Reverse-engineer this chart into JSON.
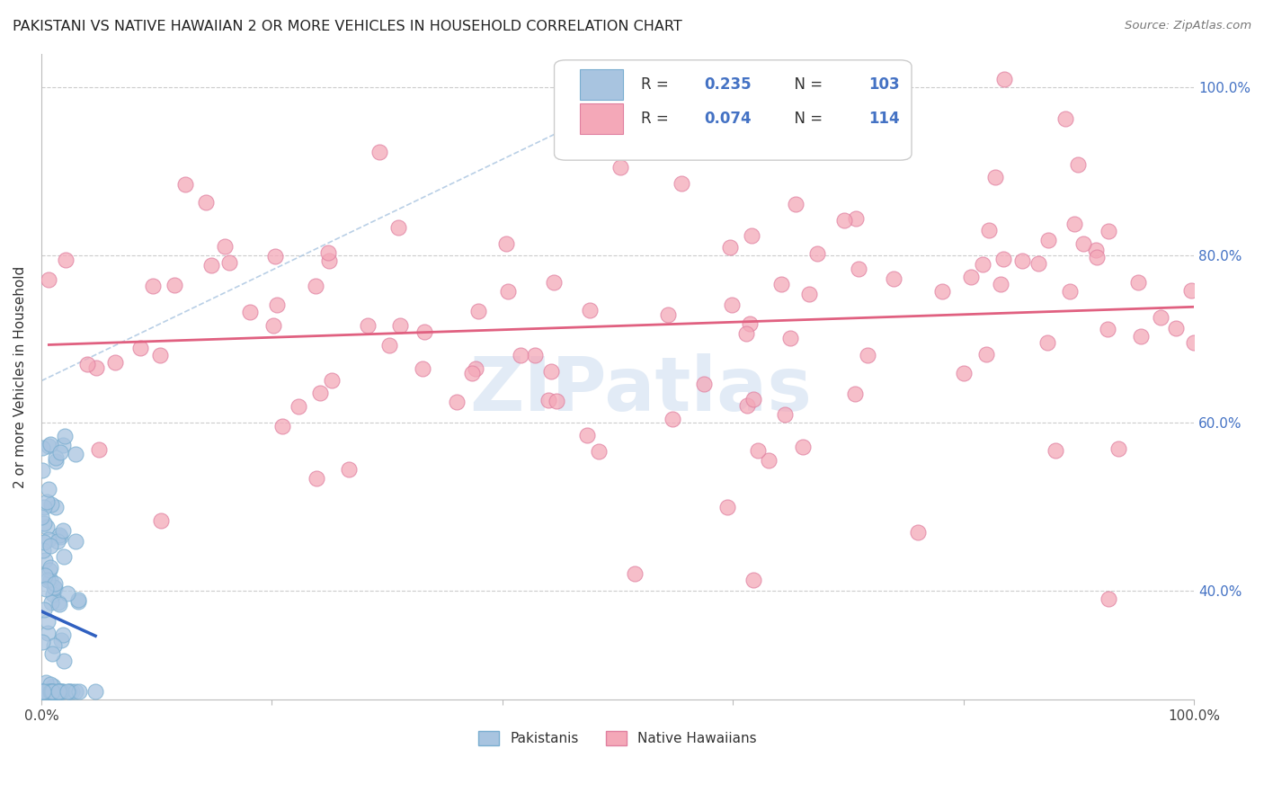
{
  "title": "PAKISTANI VS NATIVE HAWAIIAN 2 OR MORE VEHICLES IN HOUSEHOLD CORRELATION CHART",
  "source": "Source: ZipAtlas.com",
  "ylabel": "2 or more Vehicles in Household",
  "pakistani_R": 0.235,
  "pakistani_N": 103,
  "hawaiian_R": 0.074,
  "hawaiian_N": 114,
  "pakistani_color": "#a8c4e0",
  "pakistani_edge": "#7aaed0",
  "hawaiian_color": "#f4a8b8",
  "hawaiian_edge": "#e080a0",
  "pakistani_line_color": "#3060c0",
  "hawaiian_line_color": "#e06080",
  "dashed_line_color": "#a8c4e0",
  "legend_text_color": "#4472c4",
  "watermark_color": "#d0dff0",
  "background_color": "#ffffff",
  "grid_color": "#cccccc",
  "xlim": [
    0.0,
    1.0
  ],
  "ylim": [
    0.27,
    1.04
  ],
  "ytick_positions": [
    0.4,
    0.6,
    0.8,
    1.0
  ],
  "ytick_labels": [
    "40.0%",
    "60.0%",
    "80.0%",
    "100.0%"
  ],
  "xtick_positions": [
    0.0,
    0.2,
    0.4,
    0.6,
    0.8,
    1.0
  ],
  "xtick_labels": [
    "0.0%",
    "",
    "",
    "",
    "",
    "100.0%"
  ],
  "seed": 1234
}
